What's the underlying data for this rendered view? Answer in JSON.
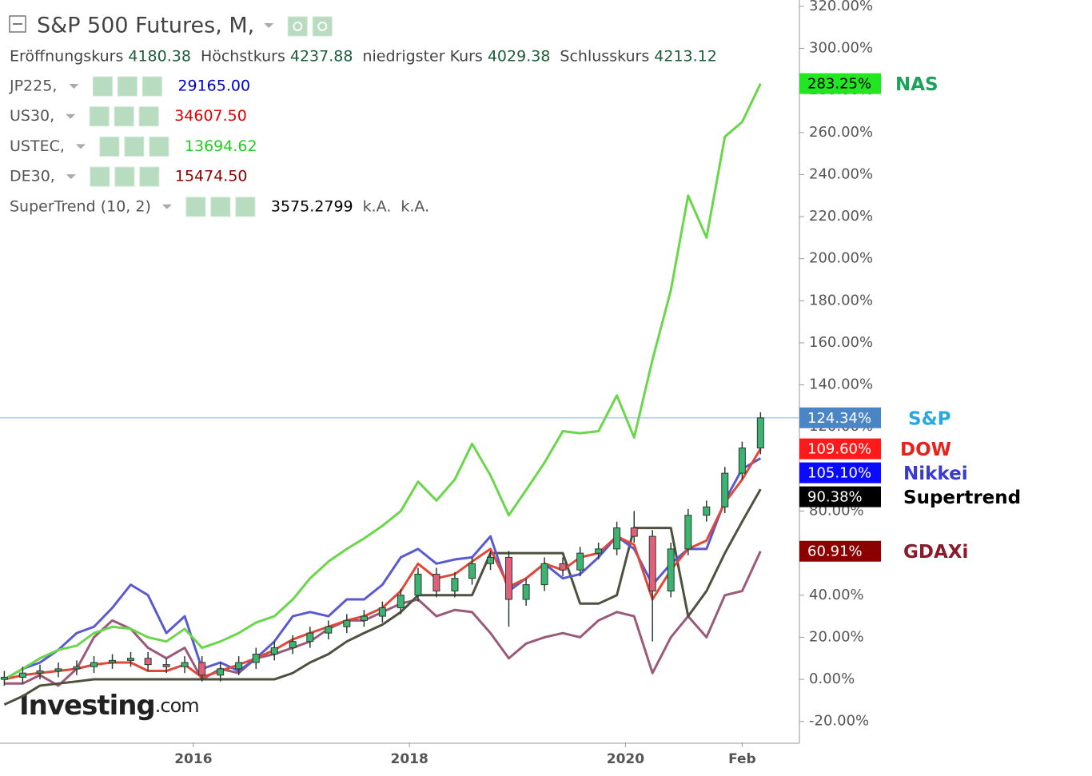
{
  "chart_data": {
    "type": "line",
    "title": "S&P 500 Futures, M,",
    "ohlc": [
      {
        "label": "Eröffnungskurs",
        "value": "4180.38"
      },
      {
        "label": "Höchstkurs",
        "value": "4237.88"
      },
      {
        "label": "niedrigster Kurs",
        "value": "4029.38"
      },
      {
        "label": "Schlusskurs",
        "value": "4213.12"
      }
    ],
    "legend": [
      {
        "name": "JP225,",
        "value": "29165.00",
        "color": "#0000cc"
      },
      {
        "name": "US30,",
        "value": "34607.50",
        "color": "#e00000"
      },
      {
        "name": "USTEC,",
        "value": "13694.62",
        "color": "#22cc22"
      },
      {
        "name": "DE30,",
        "value": "15474.50",
        "color": "#8b0000"
      },
      {
        "name": "SuperTrend (10, 2)",
        "value": "3575.2799",
        "extra": [
          "k.A.",
          "k.A."
        ],
        "color": "#000000"
      }
    ],
    "watermark_brand": "Investing",
    "watermark_suffix": ".com",
    "xlim": [
      2014.21,
      2021.61
    ],
    "xticks": [
      {
        "value": 2016,
        "label": "2016"
      },
      {
        "value": 2018,
        "label": "2018"
      },
      {
        "value": 2020,
        "label": "2020"
      },
      {
        "value": 2021.08,
        "label": "Feb"
      }
    ],
    "ylim": [
      -30,
      323
    ],
    "yticks": [
      {
        "value": 320,
        "label": "320.00%"
      },
      {
        "value": 300,
        "label": "300.00%"
      },
      {
        "value": 280,
        "label": "280.00%"
      },
      {
        "value": 260,
        "label": "260.00%"
      },
      {
        "value": 240,
        "label": "240.00%"
      },
      {
        "value": 220,
        "label": "220.00%"
      },
      {
        "value": 200,
        "label": "200.00%"
      },
      {
        "value": 180,
        "label": "180.00%"
      },
      {
        "value": 160,
        "label": "160.00%"
      },
      {
        "value": 140,
        "label": "140.00%"
      },
      {
        "value": 120,
        "label": "120.00%"
      },
      {
        "value": 100,
        "label": "100.00%"
      },
      {
        "value": 80,
        "label": "80.00%"
      },
      {
        "value": 60,
        "label": "60.00%"
      },
      {
        "value": 40,
        "label": "40.00%"
      },
      {
        "value": 20,
        "label": "20.00%"
      },
      {
        "value": 0,
        "label": "0.00%"
      },
      {
        "value": -20,
        "label": "-20.00%"
      }
    ],
    "x": [
      2014.25,
      2014.42,
      2014.58,
      2014.75,
      2014.92,
      2015.08,
      2015.25,
      2015.42,
      2015.58,
      2015.75,
      2015.92,
      2016.08,
      2016.25,
      2016.42,
      2016.58,
      2016.75,
      2016.92,
      2017.08,
      2017.25,
      2017.42,
      2017.58,
      2017.75,
      2017.92,
      2018.08,
      2018.25,
      2018.42,
      2018.58,
      2018.75,
      2018.92,
      2019.08,
      2019.25,
      2019.42,
      2019.58,
      2019.75,
      2019.92,
      2020.08,
      2020.25,
      2020.42,
      2020.58,
      2020.75,
      2020.92,
      2021.08,
      2021.25
    ],
    "series": [
      {
        "name": "NAS",
        "type": "line",
        "color": "#6ad64a",
        "label_bg": "#22e622",
        "label_text": "#000000",
        "name_color": "#1aa35a",
        "values": [
          0,
          5,
          10,
          14,
          16,
          22,
          25,
          24,
          20,
          18,
          24,
          15,
          18,
          22,
          27,
          30,
          38,
          48,
          56,
          62,
          67,
          73,
          80,
          94,
          85,
          95,
          112,
          97,
          78,
          90,
          103,
          118,
          117,
          118,
          135,
          115,
          152,
          185,
          230,
          210,
          258,
          265,
          283.25
        ],
        "value_labels": [
          null,
          null,
          null,
          null,
          null,
          null,
          null,
          null,
          null,
          null,
          null,
          null,
          null,
          null,
          null,
          null,
          null,
          null,
          null,
          null,
          null,
          null,
          null,
          null,
          null,
          null,
          null,
          null,
          null,
          null,
          null,
          null,
          null,
          null,
          null,
          null,
          null,
          null,
          null,
          null,
          null,
          null,
          "283.25%"
        ]
      },
      {
        "name": "S&P",
        "type": "candlestick",
        "color": "#3cb371",
        "down_color": "#e0607a",
        "label_bg": "#4a86c5",
        "label_text": "#ffffff",
        "name_color": "#29a8e0",
        "open": [
          0,
          1,
          3,
          4,
          5,
          6,
          8,
          9,
          10,
          7,
          6,
          8,
          2,
          5,
          8,
          12,
          15,
          18,
          22,
          25,
          28,
          30,
          34,
          40,
          50,
          42,
          48,
          55,
          58,
          38,
          45,
          55,
          52,
          60,
          62,
          72,
          68,
          42,
          62,
          78,
          82,
          98,
          110
        ],
        "high": [
          4,
          6,
          7,
          8,
          9,
          11,
          12,
          13,
          13,
          10,
          11,
          11,
          8,
          11,
          15,
          18,
          21,
          25,
          28,
          31,
          33,
          37,
          43,
          53,
          53,
          51,
          58,
          61,
          61,
          48,
          58,
          58,
          63,
          65,
          75,
          80,
          71,
          65,
          81,
          85,
          101,
          113,
          127
        ],
        "low": [
          -3,
          -2,
          0,
          1,
          2,
          3,
          5,
          6,
          4,
          3,
          3,
          -1,
          -1,
          2,
          5,
          9,
          12,
          15,
          19,
          22,
          25,
          27,
          31,
          37,
          39,
          39,
          45,
          52,
          25,
          35,
          42,
          49,
          49,
          57,
          59,
          65,
          18,
          39,
          59,
          75,
          79,
          95,
          107
        ],
        "close": [
          1,
          3,
          4,
          5,
          6,
          8,
          9,
          10,
          7,
          6,
          8,
          2,
          5,
          8,
          12,
          15,
          18,
          22,
          25,
          28,
          30,
          34,
          40,
          50,
          42,
          48,
          55,
          58,
          38,
          45,
          55,
          52,
          60,
          62,
          72,
          68,
          42,
          62,
          78,
          82,
          98,
          110,
          124.34
        ],
        "value_labels": [
          null,
          null,
          null,
          null,
          null,
          null,
          null,
          null,
          null,
          null,
          null,
          null,
          null,
          null,
          null,
          null,
          null,
          null,
          null,
          null,
          null,
          null,
          null,
          null,
          null,
          null,
          null,
          null,
          null,
          null,
          null,
          null,
          null,
          null,
          null,
          null,
          null,
          null,
          null,
          null,
          null,
          null,
          "124.34%"
        ]
      },
      {
        "name": "DOW",
        "type": "line",
        "color": "#e0483a",
        "label_bg": "#ff1a1a",
        "label_text": "#ffffff",
        "name_color": "#e8231c",
        "values": [
          0,
          2,
          3,
          4,
          5,
          7,
          8,
          8,
          4,
          4,
          7,
          1,
          4,
          7,
          10,
          14,
          19,
          22,
          25,
          28,
          30,
          34,
          42,
          55,
          48,
          50,
          56,
          62,
          44,
          48,
          55,
          52,
          58,
          60,
          68,
          64,
          38,
          52,
          62,
          66,
          84,
          95,
          109.6
        ],
        "value_labels": [
          null,
          null,
          null,
          null,
          null,
          null,
          null,
          null,
          null,
          null,
          null,
          null,
          null,
          null,
          null,
          null,
          null,
          null,
          null,
          null,
          null,
          null,
          null,
          null,
          null,
          null,
          null,
          null,
          null,
          null,
          null,
          null,
          null,
          null,
          null,
          null,
          null,
          null,
          null,
          null,
          null,
          null,
          "109.60%"
        ]
      },
      {
        "name": "Nikkei",
        "type": "line",
        "color": "#5a5ad0",
        "label_bg": "#0a0aff",
        "label_text": "#ffffff",
        "name_color": "#3a3ad0",
        "values": [
          0,
          5,
          8,
          14,
          22,
          25,
          34,
          45,
          40,
          22,
          30,
          5,
          8,
          4,
          10,
          18,
          30,
          32,
          30,
          38,
          38,
          45,
          58,
          62,
          55,
          57,
          58,
          68,
          42,
          48,
          55,
          48,
          50,
          58,
          68,
          62,
          45,
          55,
          62,
          62,
          85,
          100,
          105.1
        ],
        "value_labels": [
          null,
          null,
          null,
          null,
          null,
          null,
          null,
          null,
          null,
          null,
          null,
          null,
          null,
          null,
          null,
          null,
          null,
          null,
          null,
          null,
          null,
          null,
          null,
          null,
          null,
          null,
          null,
          null,
          null,
          null,
          null,
          null,
          null,
          null,
          null,
          null,
          null,
          null,
          null,
          null,
          null,
          null,
          "105.10%"
        ]
      },
      {
        "name": "Supertrend",
        "type": "line",
        "color": "#4e5040",
        "label_bg": "#000000",
        "label_text": "#ffffff",
        "name_color": "#000000",
        "values": [
          -12,
          -8,
          -3,
          -2,
          -1,
          0,
          0,
          0,
          0,
          0,
          0,
          0,
          0,
          0,
          0,
          0,
          3,
          8,
          12,
          18,
          22,
          26,
          32,
          40,
          40,
          40,
          40,
          60,
          60,
          60,
          60,
          60,
          36,
          36,
          40,
          72,
          72,
          72,
          30,
          42,
          60,
          75,
          90.38
        ],
        "value_labels": [
          null,
          null,
          null,
          null,
          null,
          null,
          null,
          null,
          null,
          null,
          null,
          null,
          null,
          null,
          null,
          null,
          null,
          null,
          null,
          null,
          null,
          null,
          null,
          null,
          null,
          null,
          null,
          null,
          null,
          null,
          null,
          null,
          null,
          null,
          null,
          null,
          null,
          null,
          null,
          null,
          null,
          null,
          "90.38%"
        ]
      },
      {
        "name": "GDAXi",
        "type": "line",
        "color": "#9a5a7a",
        "label_bg": "#8b0000",
        "label_text": "#ffffff",
        "name_color": "#8b1a2a",
        "values": [
          -2,
          -2,
          2,
          -3,
          5,
          20,
          28,
          24,
          15,
          10,
          15,
          0,
          5,
          3,
          10,
          12,
          15,
          18,
          24,
          28,
          28,
          32,
          36,
          38,
          30,
          33,
          32,
          22,
          10,
          17,
          20,
          22,
          20,
          28,
          32,
          30,
          3,
          20,
          30,
          20,
          40,
          42,
          60.91
        ],
        "value_labels": [
          null,
          null,
          null,
          null,
          null,
          null,
          null,
          null,
          null,
          null,
          null,
          null,
          null,
          null,
          null,
          null,
          null,
          null,
          null,
          null,
          null,
          null,
          null,
          null,
          null,
          null,
          null,
          null,
          null,
          null,
          null,
          null,
          null,
          null,
          null,
          null,
          null,
          null,
          null,
          null,
          null,
          null,
          "60.91%"
        ]
      }
    ]
  }
}
